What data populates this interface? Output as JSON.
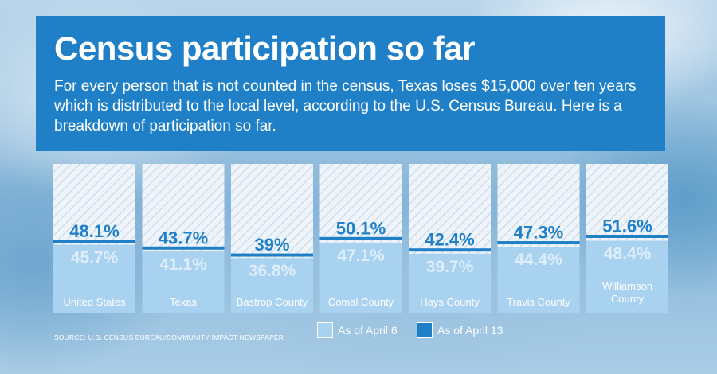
{
  "header": {
    "title": "Census participation so far",
    "subtitle": "For every person that is not counted in the census, Texas loses $15,000 over ten years which is distributed to the local level, according to the U.S. Census Bureau. Here is a breakdown of participation so far."
  },
  "source": "SOURCE: U.S. CENSUS BUREAU/COMMUNITY IMPACT NEWSPAPER",
  "colors": {
    "april6_fill": "#a9d1f0",
    "april13_line": "#1f80c8",
    "banner": "#1f80c8"
  },
  "chart_data": {
    "type": "bar",
    "title": "Census participation so far",
    "unit": "%",
    "ylim": [
      0,
      100
    ],
    "categories": [
      "United States",
      "Texas",
      "Bastrop County",
      "Comal County",
      "Hays County",
      "Travis County",
      "Williamson County"
    ],
    "series": [
      {
        "name": "As of April 6",
        "values": [
          45.7,
          41.1,
          36.8,
          47.1,
          39.7,
          44.4,
          48.4
        ],
        "labels": [
          "45.7%",
          "41.1%",
          "36.8%",
          "47.1%",
          "39.7%",
          "44.4%",
          "48.4%"
        ]
      },
      {
        "name": "As of April 13",
        "values": [
          48.1,
          43.7,
          39,
          50.1,
          42.4,
          47.3,
          51.6
        ],
        "labels": [
          "48.1%",
          "43.7%",
          "39%",
          "50.1%",
          "42.4%",
          "47.3%",
          "51.6%"
        ]
      }
    ],
    "legend_position": "bottom-right",
    "grid": false
  }
}
